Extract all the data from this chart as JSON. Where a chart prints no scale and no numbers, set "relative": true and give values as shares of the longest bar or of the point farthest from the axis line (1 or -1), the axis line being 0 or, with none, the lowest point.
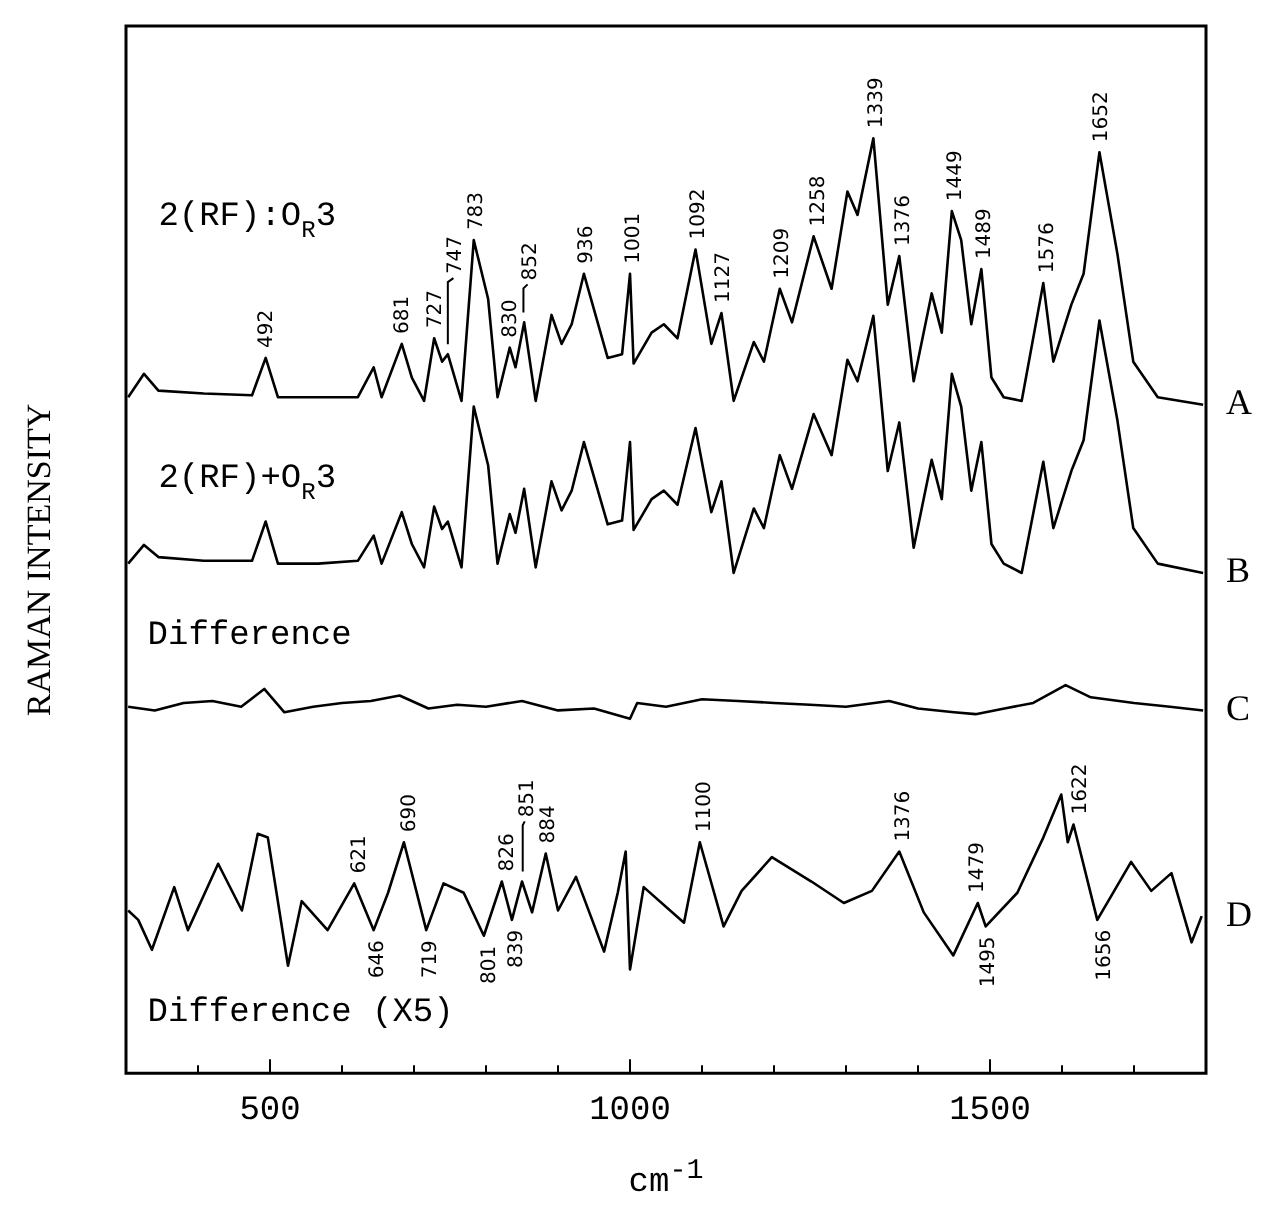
{
  "chart_data": {
    "type": "line",
    "relative": true,
    "xlabel": "cm$^{-1}$",
    "ylabel": "RAMAN INTENSITY",
    "xlim": [
      300,
      1800
    ],
    "xticks": [
      {
        "value": 400,
        "label": null
      },
      500,
      {
        "value": 600,
        "label": null
      },
      {
        "value": 700,
        "label": null
      },
      {
        "value": 800,
        "label": null
      },
      {
        "value": 900,
        "label": null
      },
      1000,
      {
        "value": 1100,
        "label": null
      },
      {
        "value": 1200,
        "label": null
      },
      {
        "value": 1300,
        "label": null
      },
      {
        "value": 1400,
        "label": null
      },
      1500,
      {
        "value": 1600,
        "label": null
      },
      {
        "value": 1700,
        "label": null
      }
    ],
    "grid": false,
    "legend": false,
    "marker": "none",
    "series": [
      {
        "name": "A",
        "color": "#000000",
        "x": [
          303,
          325,
          345,
          408,
          475,
          494,
          511,
          567,
          622,
          644,
          655,
          683,
          697,
          714,
          728,
          739,
          747,
          766,
          783,
          803,
          816,
          833,
          841,
          853,
          869,
          891,
          905,
          919,
          936,
          969,
          989,
          1000,
          1005,
          1030,
          1047,
          1066,
          1091,
          1113,
          1127,
          1144,
          1172,
          1186,
          1208,
          1225,
          1255,
          1280,
          1302,
          1316,
          1338,
          1358,
          1374,
          1394,
          1419,
          1433,
          1447,
          1460,
          1474,
          1488,
          1502,
          1519,
          1544,
          1574,
          1588,
          1613,
          1630,
          1652,
          1677,
          1699,
          1733,
          1796
        ],
        "values": [
          0.723,
          0.748,
          0.73,
          0.727,
          0.725,
          0.765,
          0.723,
          0.723,
          0.723,
          0.755,
          0.723,
          0.78,
          0.744,
          0.719,
          0.786,
          0.761,
          0.769,
          0.719,
          0.891,
          0.828,
          0.723,
          0.776,
          0.755,
          0.803,
          0.719,
          0.811,
          0.78,
          0.801,
          0.855,
          0.765,
          0.769,
          0.855,
          0.759,
          0.792,
          0.801,
          0.786,
          0.881,
          0.78,
          0.813,
          0.719,
          0.782,
          0.761,
          0.839,
          0.803,
          0.895,
          0.839,
          0.943,
          0.918,
          1.0,
          0.822,
          0.874,
          0.74,
          0.834,
          0.792,
          0.922,
          0.891,
          0.801,
          0.86,
          0.744,
          0.723,
          0.719,
          0.845,
          0.761,
          0.822,
          0.855,
          0.985,
          0.876,
          0.761,
          0.723,
          0.715
        ]
      },
      {
        "name": "B",
        "color": "#000000",
        "x": [
          303,
          325,
          345,
          408,
          475,
          494,
          511,
          567,
          622,
          644,
          655,
          683,
          697,
          714,
          728,
          739,
          747,
          766,
          783,
          803,
          816,
          833,
          841,
          853,
          869,
          891,
          905,
          919,
          936,
          969,
          989,
          1000,
          1005,
          1030,
          1047,
          1066,
          1091,
          1113,
          1127,
          1144,
          1172,
          1186,
          1208,
          1225,
          1255,
          1280,
          1302,
          1316,
          1338,
          1358,
          1374,
          1394,
          1419,
          1433,
          1447,
          1460,
          1474,
          1488,
          1502,
          1519,
          1544,
          1574,
          1588,
          1613,
          1630,
          1652,
          1677,
          1699,
          1733,
          1796
        ],
        "values": [
          0.545,
          0.565,
          0.552,
          0.548,
          0.548,
          0.59,
          0.545,
          0.545,
          0.548,
          0.575,
          0.545,
          0.6,
          0.566,
          0.541,
          0.606,
          0.582,
          0.59,
          0.541,
          0.713,
          0.65,
          0.545,
          0.598,
          0.578,
          0.625,
          0.541,
          0.633,
          0.602,
          0.623,
          0.675,
          0.587,
          0.591,
          0.675,
          0.581,
          0.614,
          0.623,
          0.608,
          0.69,
          0.6,
          0.633,
          0.535,
          0.604,
          0.583,
          0.661,
          0.625,
          0.705,
          0.661,
          0.763,
          0.74,
          0.81,
          0.644,
          0.696,
          0.562,
          0.656,
          0.614,
          0.748,
          0.713,
          0.623,
          0.675,
          0.566,
          0.545,
          0.535,
          0.654,
          0.583,
          0.644,
          0.677,
          0.805,
          0.698,
          0.583,
          0.545,
          0.535
        ]
      },
      {
        "name": "C",
        "color": "#000000",
        "x": [
          303,
          340,
          380,
          420,
          460,
          492,
          520,
          560,
          600,
          640,
          680,
          720,
          760,
          800,
          850,
          900,
          950,
          1000,
          1010,
          1050,
          1100,
          1150,
          1200,
          1250,
          1300,
          1360,
          1400,
          1450,
          1480,
          1520,
          1560,
          1605,
          1640,
          1700,
          1750,
          1796
        ],
        "values": [
          0.392,
          0.388,
          0.396,
          0.398,
          0.392,
          0.411,
          0.386,
          0.392,
          0.396,
          0.398,
          0.404,
          0.39,
          0.394,
          0.392,
          0.398,
          0.388,
          0.39,
          0.379,
          0.396,
          0.392,
          0.4,
          0.398,
          0.396,
          0.394,
          0.392,
          0.398,
          0.39,
          0.386,
          0.384,
          0.39,
          0.396,
          0.415,
          0.402,
          0.396,
          0.392,
          0.388
        ]
      },
      {
        "name": "D",
        "color": "#000000",
        "x": [
          303,
          317,
          336,
          367,
          386,
          428,
          461,
          483,
          497,
          525,
          544,
          580,
          617,
          644,
          664,
          686,
          717,
          741,
          769,
          797,
          822,
          836,
          850,
          864,
          883,
          900,
          925,
          964,
          983,
          994,
          1000,
          1019,
          1075,
          1097,
          1130,
          1155,
          1197,
          1252,
          1297,
          1336,
          1374,
          1408,
          1449,
          1483,
          1494,
          1538,
          1574,
          1599,
          1608,
          1616,
          1649,
          1696,
          1724,
          1752,
          1780,
          1794
        ],
        "values": [
          0.174,
          0.164,
          0.132,
          0.199,
          0.153,
          0.224,
          0.174,
          0.256,
          0.252,
          0.115,
          0.184,
          0.153,
          0.203,
          0.153,
          0.193,
          0.247,
          0.153,
          0.203,
          0.193,
          0.147,
          0.205,
          0.164,
          0.205,
          0.172,
          0.235,
          0.174,
          0.21,
          0.13,
          0.193,
          0.237,
          0.111,
          0.199,
          0.161,
          0.247,
          0.157,
          0.195,
          0.231,
          0.205,
          0.182,
          0.195,
          0.237,
          0.172,
          0.126,
          0.182,
          0.157,
          0.193,
          0.252,
          0.298,
          0.247,
          0.266,
          0.164,
          0.226,
          0.195,
          0.214,
          0.14,
          0.168
        ]
      }
    ],
    "annotations": [
      "2(RF):O$_{R}$3",
      "2(RF)+O$_{R}$3",
      "Difference",
      "Difference (X5)",
      {
        "text": "492",
        "x": 492,
        "y": 0.765
      },
      {
        "text": "681",
        "x": 681,
        "y": 0.78
      },
      {
        "text": "727",
        "x": 727,
        "y": 0.786
      },
      {
        "text": "747",
        "x": 747,
        "y": 0.769
      },
      {
        "text": "783",
        "x": 783,
        "y": 0.891
      },
      {
        "text": "830",
        "x": 830,
        "y": 0.776
      },
      {
        "text": "852",
        "x": 852,
        "y": 0.803
      },
      {
        "text": "936",
        "x": 936,
        "y": 0.855
      },
      {
        "text": "1001",
        "x": 1001,
        "y": 0.855
      },
      {
        "text": "1092",
        "x": 1092,
        "y": 0.881
      },
      {
        "text": "1127",
        "x": 1127,
        "y": 0.813
      },
      {
        "text": "1209",
        "x": 1209,
        "y": 0.839
      },
      {
        "text": "1258",
        "x": 1258,
        "y": 0.895
      },
      {
        "text": "1339",
        "x": 1339,
        "y": 1.0
      },
      {
        "text": "1376",
        "x": 1376,
        "y": 0.874
      },
      {
        "text": "1449",
        "x": 1449,
        "y": 0.922
      },
      {
        "text": "1489",
        "x": 1489,
        "y": 0.86
      },
      {
        "text": "1576",
        "x": 1576,
        "y": 0.845
      },
      {
        "text": "1652",
        "x": 1652,
        "y": 0.985
      },
      {
        "text": "621",
        "x": 621,
        "y": 0.203
      },
      {
        "text": "646",
        "x": 646,
        "y": 0.153
      },
      {
        "text": "690",
        "x": 690,
        "y": 0.247
      },
      {
        "text": "719",
        "x": 719,
        "y": 0.153
      },
      {
        "text": "801",
        "x": 801,
        "y": 0.147
      },
      {
        "text": "826",
        "x": 826,
        "y": 0.205
      },
      {
        "text": "839",
        "x": 839,
        "y": 0.164
      },
      {
        "text": "851",
        "x": 851,
        "y": 0.205
      },
      {
        "text": "884",
        "x": 884,
        "y": 0.235
      },
      {
        "text": "1100",
        "x": 1100,
        "y": 0.247
      },
      {
        "text": "1376",
        "x": 1376,
        "y": 0.237
      },
      {
        "text": "1479",
        "x": 1479,
        "y": 0.182
      },
      {
        "text": "1495",
        "x": 1495,
        "y": 0.157
      },
      {
        "text": "1622",
        "x": 1622,
        "y": 0.266
      },
      {
        "text": "1656",
        "x": 1656,
        "y": 0.164
      }
    ]
  }
}
